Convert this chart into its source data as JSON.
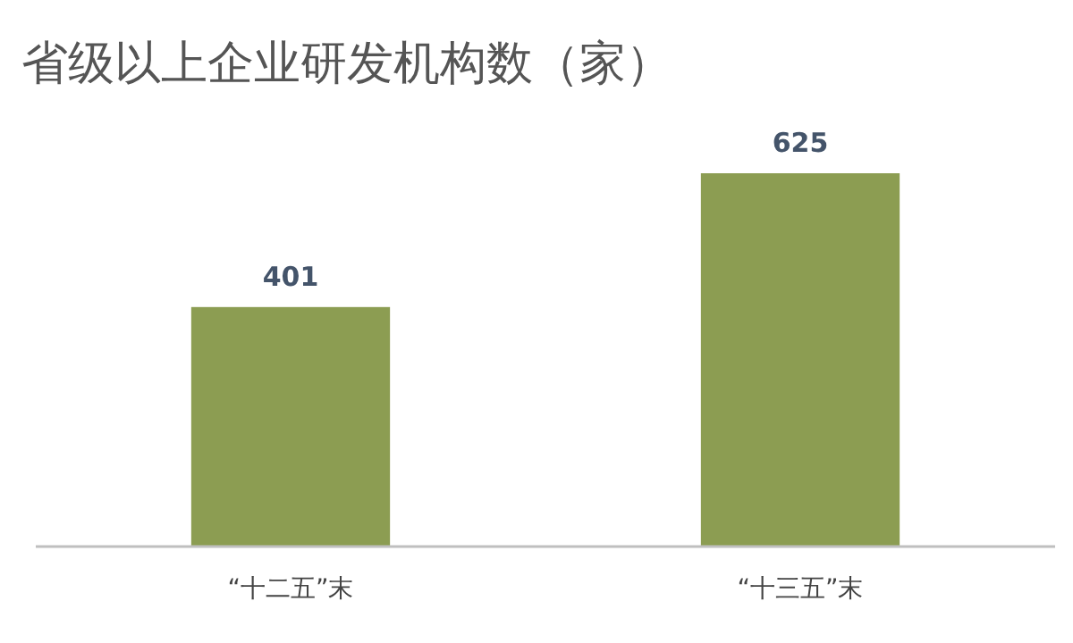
{
  "chart_data": {
    "type": "bar",
    "title": "省级以上企业研发机构数（家）",
    "categories": [
      "“十二五”末",
      "“十三五”末"
    ],
    "values": [
      401,
      625
    ],
    "color": "#8c9d52",
    "data_labels": true
  }
}
